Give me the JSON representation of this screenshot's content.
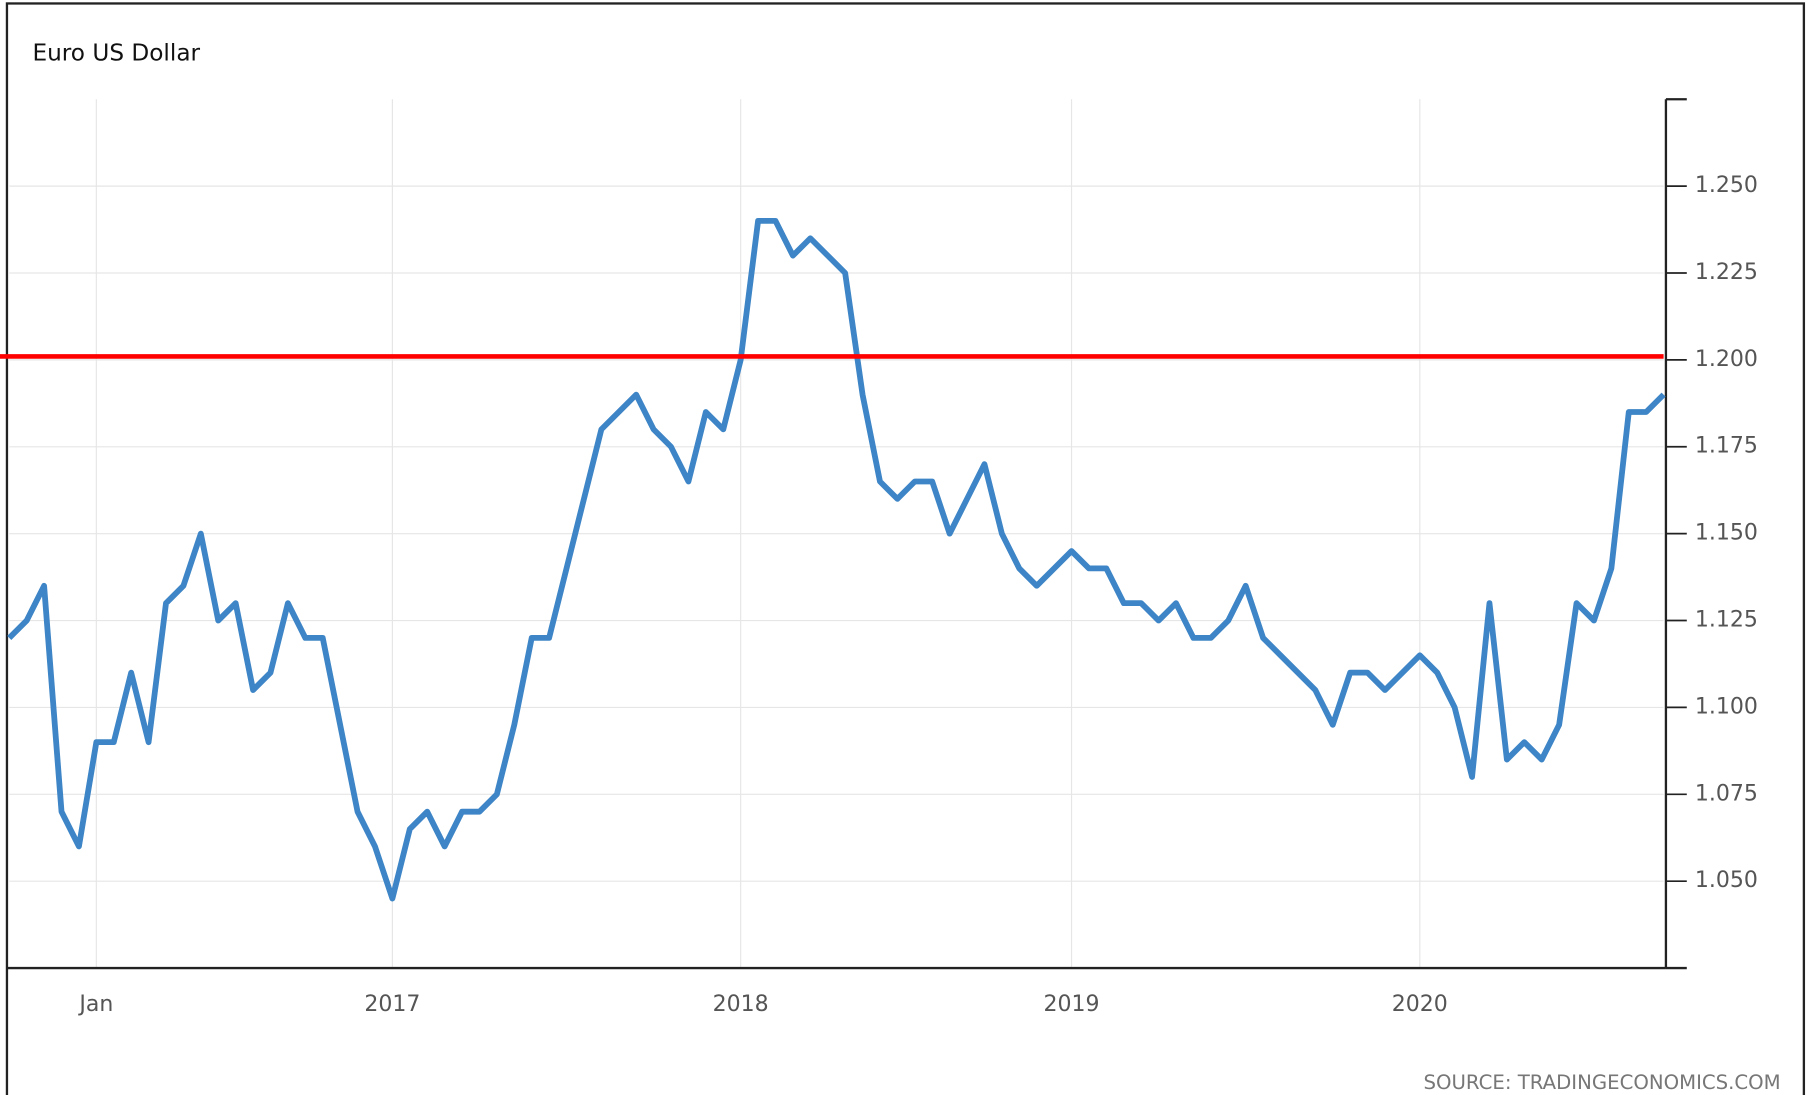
{
  "chart_data": {
    "type": "line",
    "title": "Euro US Dollar",
    "source": "SOURCE: TRADINGECONOMICS.COM",
    "categories": [
      null,
      null,
      null,
      null,
      null,
      "Jan",
      null,
      null,
      null,
      null,
      null,
      null,
      null,
      null,
      null,
      null,
      null,
      null,
      null,
      null,
      null,
      null,
      "2017",
      null,
      null,
      null,
      null,
      null,
      null,
      null,
      null,
      null,
      null,
      null,
      null,
      null,
      null,
      null,
      null,
      null,
      null,
      null,
      "2018",
      null,
      null,
      null,
      null,
      null,
      null,
      null,
      null,
      null,
      null,
      null,
      null,
      null,
      null,
      null,
      null,
      null,
      null,
      "2019",
      null,
      null,
      null,
      null,
      null,
      null,
      null,
      null,
      null,
      null,
      null,
      null,
      null,
      null,
      null,
      null,
      null,
      null,
      null,
      "2020",
      null,
      null,
      null,
      null,
      null,
      null,
      null,
      null,
      null,
      null,
      null,
      null,
      null,
      null
    ],
    "values": [
      1.12,
      1.125,
      1.135,
      1.07,
      1.06,
      1.09,
      1.09,
      1.11,
      1.09,
      1.13,
      1.135,
      1.15,
      1.125,
      1.13,
      1.105,
      1.11,
      1.13,
      1.12,
      1.12,
      1.095,
      1.07,
      1.06,
      1.045,
      1.065,
      1.07,
      1.06,
      1.07,
      1.07,
      1.075,
      1.095,
      1.12,
      1.12,
      1.14,
      1.16,
      1.18,
      1.185,
      1.19,
      1.18,
      1.175,
      1.165,
      1.185,
      1.18,
      1.2,
      1.24,
      1.24,
      1.23,
      1.235,
      1.23,
      1.225,
      1.19,
      1.165,
      1.16,
      1.165,
      1.165,
      1.15,
      1.16,
      1.17,
      1.15,
      1.14,
      1.135,
      1.14,
      1.145,
      1.14,
      1.14,
      1.13,
      1.13,
      1.125,
      1.13,
      1.12,
      1.12,
      1.125,
      1.135,
      1.12,
      1.115,
      1.11,
      1.105,
      1.095,
      1.11,
      1.11,
      1.105,
      1.11,
      1.115,
      1.11,
      1.1,
      1.08,
      1.13,
      1.085,
      1.09,
      1.085,
      1.095,
      1.13,
      1.125,
      1.14,
      1.185,
      1.185,
      1.19
    ],
    "color": "#3d85c6",
    "hline": {
      "value": 1.201,
      "color": "#ff0000"
    },
    "ylim": [
      1.025,
      1.275
    ],
    "yticks": [
      {
        "value": 1.05,
        "label": "1.050"
      },
      {
        "value": 1.075,
        "label": "1.075"
      },
      {
        "value": 1.1,
        "label": "1.100"
      },
      {
        "value": 1.125,
        "label": "1.125"
      },
      {
        "value": 1.15,
        "label": "1.150"
      },
      {
        "value": 1.175,
        "label": "1.175"
      },
      {
        "value": 1.2,
        "label": "1.200"
      },
      {
        "value": 1.225,
        "label": "1.225"
      },
      {
        "value": 1.25,
        "label": "1.250"
      }
    ],
    "y_axis_side": "right",
    "grid": true
  }
}
